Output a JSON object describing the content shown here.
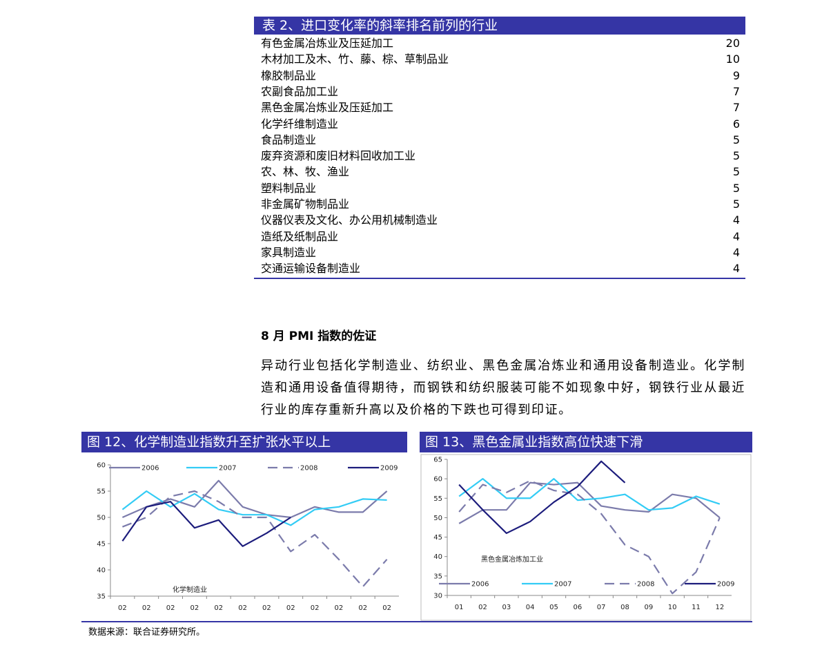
{
  "table": {
    "title": "表 2、进口变化率的斜率排名前列的行业",
    "rows": [
      {
        "name": "有色金属冶炼业及压延加工",
        "value": 20
      },
      {
        "name": "木材加工及木、竹、藤、棕、草制品业",
        "value": 10
      },
      {
        "name": "橡胶制品业",
        "value": 9
      },
      {
        "name": "农副食品加工业",
        "value": 7
      },
      {
        "name": "黑色金属冶炼业及压延加工",
        "value": 7
      },
      {
        "name": "化学纤维制造业",
        "value": 6
      },
      {
        "name": "食品制造业",
        "value": 5
      },
      {
        "name": "废弃资源和废旧材料回收加工业",
        "value": 5
      },
      {
        "name": "农、林、牧、渔业",
        "value": 5
      },
      {
        "name": "塑料制品业",
        "value": 5
      },
      {
        "name": "非金属矿物制品业",
        "value": 5
      },
      {
        "name": "仪器仪表及文化、办公用机械制造业",
        "value": 4
      },
      {
        "name": "造纸及纸制品业",
        "value": 4
      },
      {
        "name": "家具制造业",
        "value": 4
      },
      {
        "name": "交通运输设备制造业",
        "value": 4
      }
    ]
  },
  "section": {
    "heading": "8 月 PMI 指数的佐证",
    "paragraph": "异动行业包括化学制造业、纺织业、黑色金属冶炼业和通用设备制造业。化学制造和通用设备值得期待，而钢铁和纺织服装可能不如现象中好，钢铁行业从最近行业的库存重新升高以及价格的下跌也可得到印证。"
  },
  "figures": [
    {
      "title": "图 12、化学制造业指数升至扩张水平以上",
      "chart_data": {
        "type": "line",
        "annotation": "化学制造业",
        "x": [
          "02",
          "02",
          "02",
          "02",
          "02",
          "02",
          "02",
          "02",
          "02",
          "02",
          "02",
          "02"
        ],
        "ylim": [
          35,
          60
        ],
        "yticks": [
          35,
          40,
          45,
          50,
          55,
          60
        ],
        "legend": "top",
        "series": [
          {
            "name": "2006",
            "color": "#7b7bab",
            "line_style": "solid",
            "values": [
              50,
              52,
              53.5,
              52,
              57,
              52,
              50.5,
              50,
              52,
              51,
              51,
              55
            ]
          },
          {
            "name": "2007",
            "color": "#33ccf5",
            "line_style": "solid",
            "values": [
              51.5,
              55,
              52,
              54.5,
              51.5,
              50.5,
              50.5,
              48.5,
              51.5,
              52,
              53.5,
              53.3
            ]
          },
          {
            "name": "2008",
            "color": "#7b7bab",
            "line_style": "dashed",
            "values": [
              48.2,
              50,
              54,
              55,
              53,
              50,
              50,
              43.5,
              46.7,
              42,
              36.8,
              42
            ]
          },
          {
            "name": "2009",
            "color": "#1c1c7c",
            "line_style": "solid",
            "values": [
              45.5,
              52,
              53,
              48,
              49.5,
              44.5,
              47,
              50,
              null,
              null,
              null,
              null
            ]
          }
        ]
      }
    },
    {
      "title": "图 13、黑色金属业指数高位快速下滑",
      "chart_data": {
        "type": "line",
        "annotation": "黑色金属冶炼加工业",
        "x": [
          "01",
          "02",
          "03",
          "04",
          "05",
          "06",
          "07",
          "08",
          "09",
          "10",
          "11",
          "12"
        ],
        "ylim": [
          30,
          65
        ],
        "yticks": [
          30,
          35,
          40,
          45,
          50,
          55,
          60,
          65
        ],
        "legend": "bottom",
        "series": [
          {
            "name": "2006",
            "color": "#7b7bab",
            "line_style": "solid",
            "values": [
              48.5,
              52,
              52,
              59,
              58.5,
              59,
              53,
              52,
              51.5,
              56,
              55,
              50
            ]
          },
          {
            "name": "2007",
            "color": "#33ccf5",
            "line_style": "solid",
            "values": [
              55.5,
              60,
              55,
              55,
              60,
              54.5,
              55,
              56,
              52,
              52.5,
              55.5,
              53.5
            ]
          },
          {
            "name": "2008",
            "color": "#7b7bab",
            "line_style": "dashed",
            "values": [
              51.5,
              58.5,
              56.5,
              59.5,
              57,
              56,
              51,
              43,
              40,
              30.5,
              36,
              50
            ]
          },
          {
            "name": "2009",
            "color": "#1c1c7c",
            "line_style": "solid",
            "values": [
              58.5,
              52,
              46,
              49,
              54,
              58,
              64.5,
              59,
              null,
              null,
              null,
              null
            ]
          }
        ]
      }
    }
  ],
  "source": "数据来源：联合证券研究所。"
}
